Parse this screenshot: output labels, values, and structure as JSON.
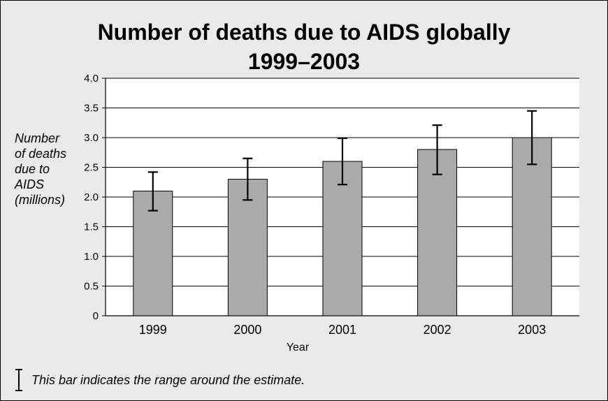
{
  "title": "Number of deaths due to AIDS globally 1999–2003",
  "legend_note": "This bar indicates the range around the estimate.",
  "colors": {
    "bar": "#aaaaaa",
    "background": "#eaeaea",
    "plot": "#ffffff"
  },
  "chart_data": {
    "type": "bar",
    "title": "Number of deaths due to AIDS globally 1999–2003",
    "xlabel": "Year",
    "ylabel": "Number of deaths due to AIDS (millions)",
    "ylabel_lines": [
      "Number",
      "of deaths",
      "due to",
      "AIDS",
      "(millions)"
    ],
    "categories": [
      "1999",
      "2000",
      "2001",
      "2002",
      "2003"
    ],
    "values": [
      2.1,
      2.3,
      2.6,
      2.8,
      3.0
    ],
    "error_low": [
      1.77,
      1.95,
      2.21,
      2.38,
      2.55
    ],
    "error_high": [
      2.42,
      2.65,
      2.99,
      3.21,
      3.45
    ],
    "ylim": [
      0,
      4.0
    ],
    "yticks": [
      "0",
      "0.5",
      "1.0",
      "1.5",
      "2.0",
      "2.5",
      "3.0",
      "3.5",
      "4.0"
    ],
    "grid": true
  }
}
